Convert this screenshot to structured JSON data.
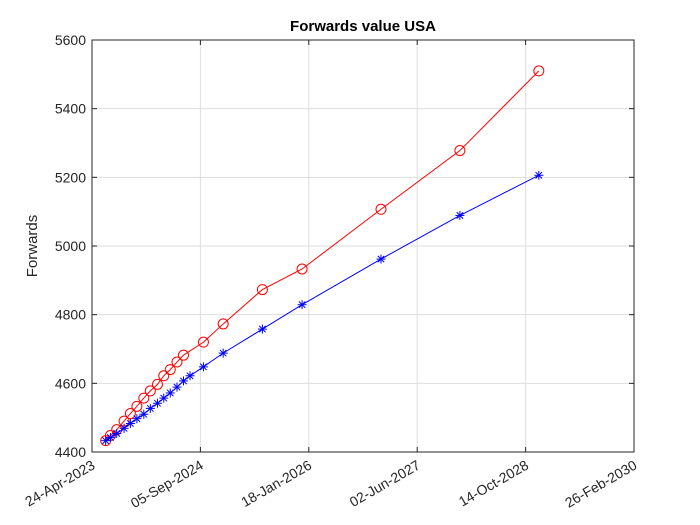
{
  "chart_data": {
    "type": "line",
    "title": "Forwards value USA",
    "xlabel": "",
    "ylabel": "Forwards",
    "x_axis_type": "date",
    "xlim": [
      "2023-04-24",
      "2030-02-26"
    ],
    "ylim": [
      4400,
      5600
    ],
    "x_ticks": [
      "2023-04-24",
      "2024-09-05",
      "2026-01-18",
      "2027-06-02",
      "2028-10-14",
      "2030-02-26"
    ],
    "x_tick_labels": [
      "24-Apr-2023",
      "05-Sep-2024",
      "18-Jan-2026",
      "02-Jun-2027",
      "14-Oct-2028",
      "26-Feb-2030"
    ],
    "y_ticks": [
      4400,
      4600,
      4800,
      5000,
      5200,
      5400,
      5600
    ],
    "grid": true,
    "series": [
      {
        "color": "#ff0000",
        "marker": "circle",
        "points": [
          {
            "x": "2023-06-26",
            "y": 4433
          },
          {
            "x": "2023-07-18",
            "y": 4448
          },
          {
            "x": "2023-08-16",
            "y": 4465
          },
          {
            "x": "2023-09-19",
            "y": 4490
          },
          {
            "x": "2023-10-18",
            "y": 4512
          },
          {
            "x": "2023-11-17",
            "y": 4533
          },
          {
            "x": "2023-12-19",
            "y": 4557
          },
          {
            "x": "2024-01-18",
            "y": 4578
          },
          {
            "x": "2024-02-20",
            "y": 4597
          },
          {
            "x": "2024-03-20",
            "y": 4622
          },
          {
            "x": "2024-04-19",
            "y": 4640
          },
          {
            "x": "2024-05-20",
            "y": 4662
          },
          {
            "x": "2024-06-19",
            "y": 4682
          },
          {
            "x": "2024-09-19",
            "y": 4720
          },
          {
            "x": "2024-12-19",
            "y": 4773
          },
          {
            "x": "2025-06-18",
            "y": 4873
          },
          {
            "x": "2025-12-18",
            "y": 4933
          },
          {
            "x": "2026-12-17",
            "y": 5107
          },
          {
            "x": "2027-12-16",
            "y": 5278
          },
          {
            "x": "2028-12-14",
            "y": 5510
          }
        ]
      },
      {
        "color": "#0000ff",
        "marker": "asterisk",
        "points": [
          {
            "x": "2023-06-26",
            "y": 4433
          },
          {
            "x": "2023-07-18",
            "y": 4442
          },
          {
            "x": "2023-08-16",
            "y": 4454
          },
          {
            "x": "2023-09-19",
            "y": 4469
          },
          {
            "x": "2023-10-18",
            "y": 4483
          },
          {
            "x": "2023-11-17",
            "y": 4497
          },
          {
            "x": "2023-12-19",
            "y": 4510
          },
          {
            "x": "2024-01-18",
            "y": 4527
          },
          {
            "x": "2024-02-20",
            "y": 4542
          },
          {
            "x": "2024-03-20",
            "y": 4557
          },
          {
            "x": "2024-04-19",
            "y": 4572
          },
          {
            "x": "2024-05-20",
            "y": 4589
          },
          {
            "x": "2024-06-19",
            "y": 4607
          },
          {
            "x": "2024-07-19",
            "y": 4622
          },
          {
            "x": "2024-09-19",
            "y": 4648
          },
          {
            "x": "2024-12-19",
            "y": 4688
          },
          {
            "x": "2025-06-18",
            "y": 4758
          },
          {
            "x": "2025-12-18",
            "y": 4829
          },
          {
            "x": "2026-12-17",
            "y": 4962
          },
          {
            "x": "2027-12-16",
            "y": 5089
          },
          {
            "x": "2028-12-14",
            "y": 5206
          }
        ]
      }
    ]
  }
}
